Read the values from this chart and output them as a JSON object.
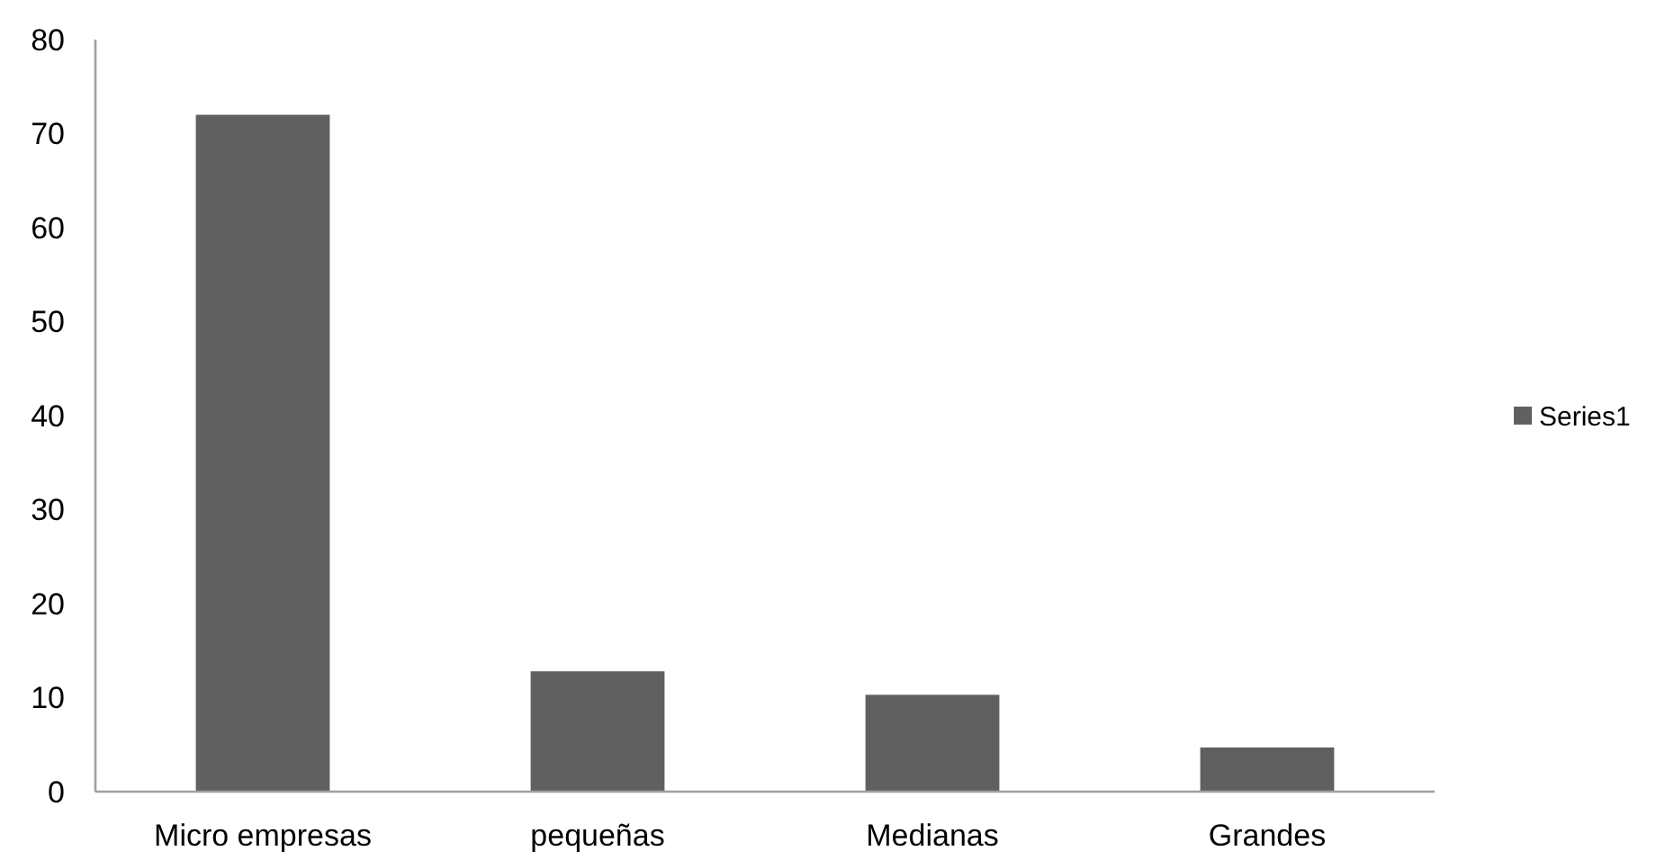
{
  "chart_data": {
    "type": "bar",
    "categories": [
      "Micro empresas",
      "pequeñas",
      "Medianas",
      "Grandes"
    ],
    "series": [
      {
        "name": "Series1",
        "color": "#606060",
        "values": [
          72,
          12.8,
          10.3,
          4.7
        ]
      }
    ],
    "ylim": [
      0,
      80
    ],
    "yticks": [
      0,
      10,
      20,
      30,
      40,
      50,
      60,
      70,
      80
    ],
    "grid": false,
    "legend": "right"
  }
}
